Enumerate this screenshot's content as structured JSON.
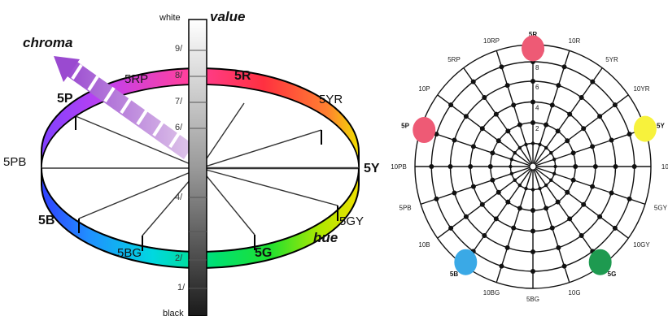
{
  "solid": {
    "chroma_label": "chroma",
    "value_label": "value",
    "hue_label": "hue",
    "white_label": "white",
    "black_label": "black",
    "value_ticks": [
      "9/",
      "8/",
      "7/",
      "6/",
      "4/",
      "2/",
      "1/"
    ],
    "hues": {
      "r5": "5R",
      "yr5": "5YR",
      "y5": "5Y",
      "gy5": "5GY",
      "g5": "5G",
      "bg5": "5BG",
      "b5": "5B",
      "pb5": "5PB",
      "p5": "5P",
      "rp5": "5RP"
    }
  },
  "wheel": {
    "hues": [
      "5R",
      "10R",
      "5YR",
      "10YR",
      "5Y",
      "10Y",
      "5GY",
      "10GY",
      "5G",
      "10G",
      "5BG",
      "10BG",
      "5B",
      "10B",
      "5PB",
      "10PB",
      "5P",
      "10P",
      "5RP",
      "10RP"
    ],
    "bold_hues": [
      "5R",
      "5Y",
      "5G",
      "5B",
      "5P"
    ],
    "chroma_ticks": [
      "2",
      "4",
      "6",
      "8",
      "/10"
    ],
    "swatch_colors": {
      "5R": "#ee5a75",
      "5Y": "#f7f23c",
      "5G": "#1e9a50",
      "5B": "#3aa9e6",
      "5P": "#ee5a75"
    }
  }
}
